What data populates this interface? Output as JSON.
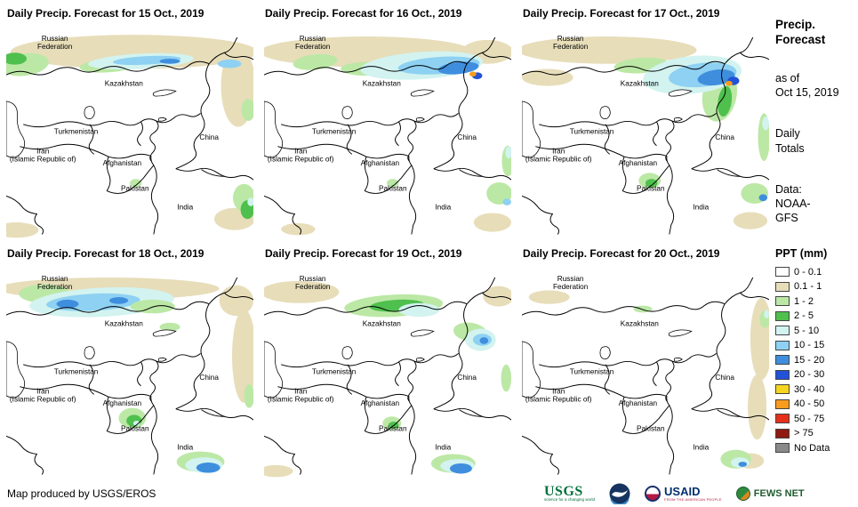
{
  "panels": [
    {
      "title": "Daily Precip. Forecast for 15 Oct., 2019"
    },
    {
      "title": "Daily Precip. Forecast for 16 Oct., 2019"
    },
    {
      "title": "Daily Precip. Forecast for 17 Oct., 2019"
    },
    {
      "title": "Daily Precip. Forecast for 18 Oct., 2019"
    },
    {
      "title": "Daily Precip. Forecast for 19 Oct., 2019"
    },
    {
      "title": "Daily Precip. Forecast for 20 Oct., 2019"
    }
  ],
  "countries": [
    {
      "id": "russia",
      "lines": [
        "Russian",
        "Federation"
      ]
    },
    {
      "id": "kazakhstan",
      "lines": [
        "Kazakhstan"
      ]
    },
    {
      "id": "turkmenistan",
      "lines": [
        "Turkmenistan"
      ]
    },
    {
      "id": "iran",
      "lines": [
        "Iran",
        "(Islamic Republic of)"
      ]
    },
    {
      "id": "afghanistan",
      "lines": [
        "Afghanistan"
      ]
    },
    {
      "id": "pakistan",
      "lines": [
        "Pakistan"
      ]
    },
    {
      "id": "india",
      "lines": [
        "India"
      ]
    },
    {
      "id": "china",
      "lines": [
        "China"
      ]
    }
  ],
  "sidebar": {
    "title_lines": [
      "Precip.",
      "Forecast"
    ],
    "asof_lines": [
      "as of",
      "Oct 15, 2019"
    ],
    "totals_lines": [
      "Daily",
      "Totals"
    ],
    "source_lines": [
      "Data:",
      "NOAA-",
      "GFS"
    ]
  },
  "legend": {
    "title": "PPT (mm)",
    "entries": [
      {
        "label": "0 - 0.1",
        "color": "#ffffff"
      },
      {
        "label": "0.1 - 1",
        "color": "#e7ddb9"
      },
      {
        "label": "1 - 2",
        "color": "#bce8a6"
      },
      {
        "label": "2 - 5",
        "color": "#4fc04e"
      },
      {
        "label": "5 - 10",
        "color": "#d2f3f0"
      },
      {
        "label": "10 - 15",
        "color": "#8ed1f2"
      },
      {
        "label": "15 - 20",
        "color": "#3f8ede"
      },
      {
        "label": "20 - 30",
        "color": "#2152d8"
      },
      {
        "label": "30 - 40",
        "color": "#f6d51f"
      },
      {
        "label": "40 - 50",
        "color": "#f79c1d"
      },
      {
        "label": "50 - 75",
        "color": "#e5301b"
      },
      {
        "label": "> 75",
        "color": "#8f1a12"
      },
      {
        "label": "No Data",
        "color": "#8a8a8a"
      }
    ]
  },
  "footer": {
    "credit": "Map produced by USGS/EROS",
    "logos": [
      {
        "id": "usgs",
        "label": "USGS",
        "tagline": "science for a changing world"
      },
      {
        "id": "noaa"
      },
      {
        "id": "usaid",
        "label": "USAID",
        "tagline": "FROM THE AMERICAN PEOPLE"
      },
      {
        "id": "fewsnet",
        "label": "FEWS NET"
      }
    ]
  },
  "map_palette": {
    "tan": "#e7ddb9",
    "lg": "#bce8a6",
    "g": "#4fc04e",
    "cy": "#d2f3f0",
    "lb": "#8ed1f2",
    "b": "#3f8ede",
    "db": "#2152d8",
    "y": "#f6d51f",
    "o": "#f79c1d",
    "r": "#e5301b"
  },
  "precip": [
    [
      [
        "tan",
        150,
        30,
        145,
        20,
        0
      ],
      [
        "tan",
        272,
        70,
        20,
        48,
        0
      ],
      [
        "tan",
        268,
        226,
        24,
        13,
        0
      ],
      [
        "tan",
        12,
        239,
        26,
        9,
        0
      ],
      [
        "lg",
        22,
        45,
        28,
        13,
        -8
      ],
      [
        "g",
        10,
        38,
        14,
        7,
        0
      ],
      [
        "lg",
        120,
        46,
        34,
        8,
        -4
      ],
      [
        "cy",
        158,
        41,
        62,
        9,
        -3
      ],
      [
        "lb",
        165,
        40,
        40,
        5,
        -3
      ],
      [
        "lb",
        262,
        44,
        14,
        5,
        0
      ],
      [
        "b",
        192,
        41,
        12,
        3,
        0
      ],
      [
        "lg",
        284,
        98,
        8,
        13,
        0
      ],
      [
        "lg",
        279,
        201,
        13,
        16,
        0
      ],
      [
        "g",
        283,
        215,
        8,
        11,
        0
      ],
      [
        "cy",
        287,
        206,
        4,
        5,
        0
      ],
      [
        "lg",
        152,
        184,
        7,
        5,
        0
      ]
    ],
    [
      [
        "tan",
        120,
        30,
        125,
        18,
        0
      ],
      [
        "tan",
        262,
        30,
        30,
        14,
        0
      ],
      [
        "tan",
        268,
        230,
        22,
        11,
        0
      ],
      [
        "tan",
        40,
        238,
        20,
        7,
        0
      ],
      [
        "lg",
        60,
        42,
        26,
        9,
        -6
      ],
      [
        "lg",
        120,
        50,
        30,
        8,
        0
      ],
      [
        "cy",
        185,
        46,
        72,
        16,
        -4
      ],
      [
        "lb",
        205,
        46,
        48,
        10,
        -4
      ],
      [
        "b",
        228,
        49,
        24,
        7,
        -6
      ],
      [
        "db",
        250,
        58,
        6,
        4,
        0
      ],
      [
        "o",
        245,
        56,
        4,
        3,
        0
      ],
      [
        "lg",
        286,
        158,
        7,
        18,
        0
      ],
      [
        "cy",
        287,
        148,
        4,
        7,
        0
      ],
      [
        "lg",
        276,
        196,
        15,
        13,
        0
      ],
      [
        "lb",
        285,
        206,
        5,
        4,
        0
      ],
      [
        "lg",
        151,
        184,
        7,
        5,
        0
      ]
    ],
    [
      [
        "tan",
        100,
        28,
        105,
        16,
        0
      ],
      [
        "tan",
        30,
        60,
        30,
        10,
        0
      ],
      [
        "tan",
        268,
        228,
        20,
        10,
        0
      ],
      [
        "lg",
        140,
        46,
        32,
        9,
        -4
      ],
      [
        "lg",
        232,
        80,
        20,
        32,
        10
      ],
      [
        "cy",
        200,
        57,
        58,
        22,
        -6
      ],
      [
        "lb",
        212,
        57,
        40,
        14,
        -6
      ],
      [
        "b",
        228,
        60,
        22,
        9,
        -8
      ],
      [
        "db",
        248,
        64,
        7,
        5,
        0
      ],
      [
        "o",
        243,
        67,
        4,
        3,
        0
      ],
      [
        "g",
        238,
        88,
        8,
        18,
        8
      ],
      [
        "lg",
        284,
        130,
        7,
        28,
        0
      ],
      [
        "cy",
        286,
        114,
        4,
        8,
        0
      ],
      [
        "lg",
        150,
        181,
        13,
        9,
        0
      ],
      [
        "g",
        152,
        184,
        7,
        5,
        0
      ],
      [
        "lg",
        273,
        196,
        16,
        12,
        0
      ],
      [
        "b",
        283,
        201,
        5,
        4,
        0
      ]
    ],
    [
      [
        "tan",
        120,
        26,
        130,
        13,
        0
      ],
      [
        "tan",
        279,
        105,
        14,
        55,
        0
      ],
      [
        "tan",
        270,
        40,
        20,
        18,
        0
      ],
      [
        "lg",
        45,
        32,
        30,
        11,
        0
      ],
      [
        "cy",
        112,
        42,
        85,
        17,
        -3
      ],
      [
        "lb",
        102,
        42,
        55,
        10,
        -3
      ],
      [
        "b",
        72,
        44,
        13,
        5,
        0
      ],
      [
        "b",
        132,
        40,
        11,
        4,
        0
      ],
      [
        "lg",
        172,
        47,
        26,
        8,
        0
      ],
      [
        "lg",
        192,
        71,
        12,
        5,
        0
      ],
      [
        "lg",
        285,
        152,
        6,
        14,
        0
      ],
      [
        "lg",
        148,
        178,
        16,
        12,
        0
      ],
      [
        "g",
        150,
        181,
        9,
        7,
        0
      ],
      [
        "cy",
        153,
        184,
        4,
        3,
        0
      ],
      [
        "lg",
        228,
        229,
        28,
        12,
        0
      ],
      [
        "cy",
        232,
        233,
        22,
        9,
        0
      ],
      [
        "b",
        237,
        236,
        14,
        6,
        0
      ]
    ],
    [
      [
        "tan",
        42,
        30,
        46,
        13,
        0
      ],
      [
        "tan",
        275,
        35,
        18,
        12,
        0
      ],
      [
        "tan",
        14,
        240,
        20,
        7,
        0
      ],
      [
        "lg",
        152,
        46,
        58,
        13,
        -3
      ],
      [
        "g",
        156,
        46,
        32,
        7,
        -3
      ],
      [
        "cy",
        182,
        51,
        24,
        8,
        0
      ],
      [
        "lg",
        242,
        77,
        20,
        11,
        8
      ],
      [
        "cy",
        254,
        86,
        18,
        13,
        0
      ],
      [
        "lb",
        256,
        86,
        11,
        7,
        0
      ],
      [
        "b",
        258,
        87,
        5,
        4,
        0
      ],
      [
        "lg",
        284,
        131,
        6,
        16,
        0
      ],
      [
        "lg",
        150,
        184,
        11,
        8,
        0
      ],
      [
        "g",
        152,
        186,
        6,
        4,
        0
      ],
      [
        "lg",
        222,
        231,
        26,
        11,
        0
      ],
      [
        "cy",
        227,
        234,
        20,
        8,
        0
      ],
      [
        "b",
        231,
        237,
        13,
        6,
        0
      ]
    ],
    [
      [
        "tan",
        281,
        85,
        13,
        48,
        0
      ],
      [
        "tan",
        276,
        165,
        11,
        38,
        0
      ],
      [
        "tan",
        32,
        36,
        24,
        8,
        0
      ],
      [
        "tan",
        268,
        228,
        16,
        9,
        0
      ],
      [
        "lg",
        285,
        62,
        6,
        10,
        0
      ],
      [
        "cy",
        287,
        56,
        3,
        5,
        0
      ],
      [
        "lg",
        142,
        50,
        11,
        4,
        0
      ],
      [
        "lg",
        251,
        226,
        18,
        11,
        0
      ],
      [
        "cy",
        256,
        230,
        11,
        6,
        0
      ],
      [
        "b",
        259,
        232,
        5,
        3,
        0
      ]
    ]
  ]
}
